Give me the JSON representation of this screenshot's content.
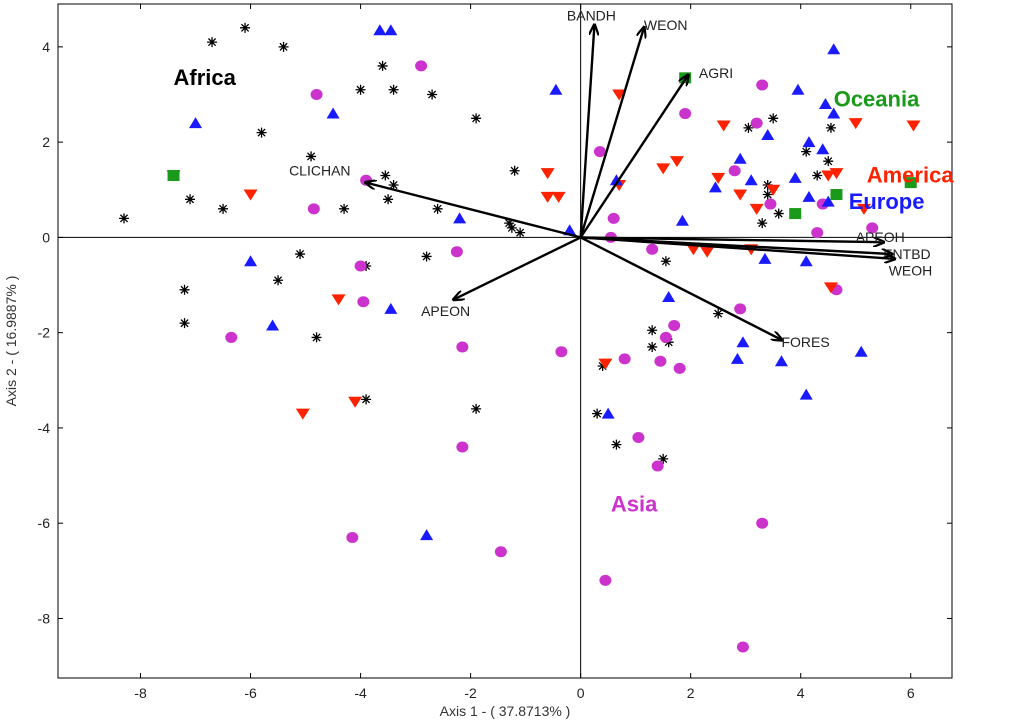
{
  "chart_data": {
    "type": "scatter",
    "xlabel": "Axis 1 - ( 37.8713% )",
    "ylabel": "Axis 2 - ( 16.9887% )",
    "xlim": [
      -9.5,
      6.75
    ],
    "ylim": [
      -9.25,
      4.9
    ],
    "xticks": [
      -8,
      -6,
      -4,
      -2,
      0,
      2,
      4,
      6
    ],
    "yticks": [
      -8,
      -6,
      -4,
      -2,
      0,
      2,
      4
    ],
    "grid": false,
    "zero_lines": true,
    "colors": {
      "africa": "#000000",
      "asia": "#cc33cc",
      "america": "#ff2200",
      "europe": "#1a1aff",
      "oceania": "#1a9a1a",
      "vector": "#000000"
    },
    "region_labels": [
      {
        "text": "Africa",
        "x": -7.4,
        "y": 3.2,
        "color": "#000000"
      },
      {
        "text": "Oceania",
        "x": 4.6,
        "y": 2.75,
        "color": "#1a9a1a"
      },
      {
        "text": "America",
        "x": 5.2,
        "y": 1.15,
        "color": "#ff2200"
      },
      {
        "text": "Europe",
        "x": 6.25,
        "y": 0.6,
        "color": "#1a1aff"
      },
      {
        "text": "Asia",
        "x": 0.55,
        "y": -5.75,
        "color": "#cc33cc"
      }
    ],
    "vectors": [
      {
        "name": "BANDH",
        "x": 0.25,
        "y": 4.45,
        "lx": -0.25,
        "ly": 4.55
      },
      {
        "name": "WEON",
        "x": 1.15,
        "y": 4.4,
        "lx": 1.15,
        "ly": 4.35
      },
      {
        "name": "AGRI",
        "x": 1.95,
        "y": 3.4,
        "lx": 2.15,
        "ly": 3.35
      },
      {
        "name": "CLICHAN",
        "x": -3.9,
        "y": 1.15,
        "lx": -5.3,
        "ly": 1.3
      },
      {
        "name": "APEON",
        "x": -2.3,
        "y": -1.3,
        "lx": -2.9,
        "ly": -1.65
      },
      {
        "name": "APEOH",
        "x": 5.5,
        "y": -0.1,
        "lx": 5.0,
        "ly": -0.1
      },
      {
        "name": "ENTBD",
        "x": 5.65,
        "y": -0.35,
        "lx": 5.5,
        "ly": -0.45
      },
      {
        "name": "WEOH",
        "x": 5.7,
        "y": -0.45,
        "lx": 5.6,
        "ly": -0.8
      },
      {
        "name": "FORES",
        "x": 3.65,
        "y": -2.15,
        "lx": 3.65,
        "ly": -2.3
      }
    ],
    "series": [
      {
        "name": "Africa",
        "marker": "star",
        "points": [
          [
            -8.3,
            0.4
          ],
          [
            -7.1,
            0.8
          ],
          [
            -6.7,
            4.1
          ],
          [
            -6.1,
            4.4
          ],
          [
            -5.8,
            2.2
          ],
          [
            -5.4,
            4.0
          ],
          [
            -4.9,
            1.7
          ],
          [
            -4.3,
            0.6
          ],
          [
            -4.0,
            3.1
          ],
          [
            -3.6,
            3.6
          ],
          [
            -3.4,
            3.1
          ],
          [
            -3.55,
            1.3
          ],
          [
            -3.4,
            1.1
          ],
          [
            -3.5,
            0.8
          ],
          [
            -2.7,
            3.0
          ],
          [
            -1.9,
            2.5
          ],
          [
            -2.6,
            0.6
          ],
          [
            -1.3,
            0.3
          ],
          [
            -1.25,
            0.2
          ],
          [
            -1.1,
            0.1
          ],
          [
            -1.2,
            1.4
          ],
          [
            -2.8,
            -0.4
          ],
          [
            -5.5,
            -0.9
          ],
          [
            -5.1,
            -0.35
          ],
          [
            -7.2,
            -1.1
          ],
          [
            -7.2,
            -1.8
          ],
          [
            -3.9,
            -0.6
          ],
          [
            -3.9,
            -3.4
          ],
          [
            -1.9,
            -3.6
          ],
          [
            -6.5,
            0.6
          ],
          [
            -4.8,
            -2.1
          ],
          [
            0.3,
            -3.7
          ],
          [
            0.4,
            -2.7
          ],
          [
            0.65,
            -4.35
          ],
          [
            1.3,
            -1.95
          ],
          [
            1.3,
            -2.3
          ],
          [
            1.5,
            -4.65
          ],
          [
            1.6,
            -2.2
          ],
          [
            1.55,
            -0.5
          ],
          [
            2.5,
            -1.6
          ],
          [
            3.05,
            2.3
          ],
          [
            3.3,
            0.3
          ],
          [
            3.5,
            2.5
          ],
          [
            3.4,
            1.1
          ],
          [
            4.1,
            1.8
          ],
          [
            4.3,
            1.3
          ],
          [
            4.55,
            2.3
          ],
          [
            4.5,
            1.6
          ],
          [
            3.6,
            0.5
          ],
          [
            3.4,
            0.9
          ],
          [
            2.8,
            1.4
          ]
        ]
      },
      {
        "name": "Asia",
        "marker": "circle",
        "points": [
          [
            -2.9,
            3.6
          ],
          [
            -4.8,
            3.0
          ],
          [
            -3.9,
            1.2
          ],
          [
            -4.85,
            0.6
          ],
          [
            -2.25,
            -0.3
          ],
          [
            -4.0,
            -0.6
          ],
          [
            -3.95,
            -1.35
          ],
          [
            -6.35,
            -2.1
          ],
          [
            -2.15,
            -2.3
          ],
          [
            -0.35,
            -2.4
          ],
          [
            -2.15,
            -4.4
          ],
          [
            -4.15,
            -6.3
          ],
          [
            -1.45,
            -6.6
          ],
          [
            0.45,
            -7.2
          ],
          [
            2.95,
            -8.6
          ],
          [
            3.3,
            -6.0
          ],
          [
            1.05,
            -4.2
          ],
          [
            1.4,
            -4.8
          ],
          [
            0.8,
            -2.55
          ],
          [
            1.45,
            -2.6
          ],
          [
            1.8,
            -2.75
          ],
          [
            1.7,
            -1.85
          ],
          [
            1.55,
            -2.1
          ],
          [
            2.9,
            -1.5
          ],
          [
            1.3,
            -0.25
          ],
          [
            0.35,
            1.8
          ],
          [
            0.6,
            0.4
          ],
          [
            0.55,
            0.0
          ],
          [
            1.9,
            2.6
          ],
          [
            2.8,
            1.4
          ],
          [
            3.2,
            2.4
          ],
          [
            3.3,
            3.2
          ],
          [
            3.45,
            0.7
          ],
          [
            4.4,
            0.7
          ],
          [
            4.3,
            0.1
          ],
          [
            4.65,
            -1.1
          ],
          [
            5.3,
            0.2
          ]
        ]
      },
      {
        "name": "America",
        "marker": "tri-down",
        "points": [
          [
            -7.4,
            1.3
          ],
          [
            -6.0,
            0.9
          ],
          [
            -4.4,
            -1.3
          ],
          [
            -4.1,
            -3.45
          ],
          [
            -5.05,
            -3.7
          ],
          [
            -0.6,
            1.35
          ],
          [
            -0.6,
            0.85
          ],
          [
            -0.4,
            0.85
          ],
          [
            0.45,
            -2.65
          ],
          [
            0.7,
            1.1
          ],
          [
            0.7,
            3.0
          ],
          [
            1.5,
            1.45
          ],
          [
            1.75,
            1.6
          ],
          [
            2.05,
            -0.25
          ],
          [
            2.3,
            -0.3
          ],
          [
            2.6,
            2.35
          ],
          [
            2.5,
            1.25
          ],
          [
            2.9,
            0.9
          ],
          [
            3.2,
            0.6
          ],
          [
            3.5,
            1.0
          ],
          [
            3.1,
            -0.25
          ],
          [
            4.5,
            1.3
          ],
          [
            4.65,
            1.35
          ],
          [
            5.0,
            2.4
          ],
          [
            5.15,
            0.6
          ],
          [
            6.05,
            2.35
          ],
          [
            4.55,
            -1.05
          ]
        ]
      },
      {
        "name": "Europe",
        "marker": "tri-up",
        "points": [
          [
            -7.0,
            2.4
          ],
          [
            -6.0,
            -0.5
          ],
          [
            -5.6,
            -1.85
          ],
          [
            -4.5,
            2.6
          ],
          [
            -3.65,
            4.35
          ],
          [
            -3.45,
            4.35
          ],
          [
            -2.2,
            0.4
          ],
          [
            -0.45,
            3.1
          ],
          [
            -0.2,
            0.15
          ],
          [
            -3.45,
            -1.5
          ],
          [
            -2.8,
            -6.25
          ],
          [
            0.5,
            -3.7
          ],
          [
            0.65,
            1.2
          ],
          [
            1.6,
            -1.25
          ],
          [
            1.85,
            0.35
          ],
          [
            2.45,
            1.05
          ],
          [
            2.9,
            1.65
          ],
          [
            3.1,
            1.2
          ],
          [
            2.95,
            -2.2
          ],
          [
            2.85,
            -2.55
          ],
          [
            3.35,
            -0.45
          ],
          [
            3.65,
            -2.6
          ],
          [
            3.4,
            2.15
          ],
          [
            3.9,
            1.25
          ],
          [
            3.95,
            3.1
          ],
          [
            4.1,
            -0.5
          ],
          [
            4.15,
            2.0
          ],
          [
            4.15,
            0.85
          ],
          [
            4.5,
            0.75
          ],
          [
            4.4,
            1.85
          ],
          [
            4.45,
            2.8
          ],
          [
            4.6,
            2.6
          ],
          [
            4.6,
            3.95
          ],
          [
            4.1,
            -3.3
          ],
          [
            5.1,
            -2.4
          ]
        ]
      },
      {
        "name": "Oceania",
        "marker": "square",
        "points": [
          [
            -7.4,
            1.3
          ],
          [
            1.9,
            3.35
          ],
          [
            3.9,
            0.5
          ],
          [
            4.65,
            0.9
          ],
          [
            6.0,
            1.15
          ]
        ]
      }
    ]
  }
}
